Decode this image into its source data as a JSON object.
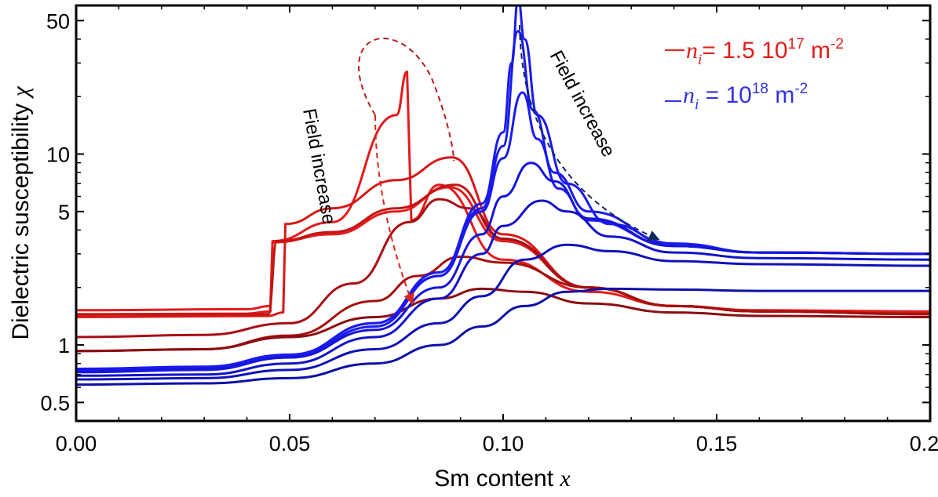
{
  "chart_data": {
    "type": "line",
    "title": "",
    "xlabel": "Sm content",
    "xlabel_symbol": "x",
    "ylabel": "Dielectric susceptibility",
    "ylabel_symbol": "χ",
    "xlim": [
      0,
      0.2
    ],
    "ylim": [
      0.4,
      60
    ],
    "yscale": "log",
    "grid": false,
    "legend_position": "top-right",
    "x_ticks": [
      0.0,
      0.05,
      0.1,
      0.15,
      0.2
    ],
    "x_tick_labels": [
      "0.00",
      "0.05",
      "0.10",
      "0.15",
      "0.20"
    ],
    "y_ticks": [
      0.5,
      1,
      5,
      10,
      50
    ],
    "y_tick_labels": [
      "0.5",
      "1",
      "5",
      "10",
      "50"
    ],
    "legend": [
      {
        "symbol": "n",
        "subscript": "i",
        "text": "= 1.5 10",
        "sup": "17",
        "unit": " m",
        "unit_sup": "-2",
        "color": "#e0201b"
      },
      {
        "symbol": "n",
        "subscript": "i",
        "text": " = 10",
        "sup": "18",
        "unit": " m",
        "unit_sup": "-2",
        "color": "#3333dd"
      }
    ],
    "annotations": [
      {
        "text": "Field increase",
        "color": "#b01010"
      },
      {
        "text": "Field increase",
        "color": "#102a5a"
      }
    ],
    "series": [
      {
        "group": "red",
        "color": "#e41a1c",
        "x": [
          0,
          0.04,
          0.0455,
          0.046,
          0.06,
          0.075,
          0.0775,
          0.0785,
          0.085,
          0.1,
          0.12,
          0.14,
          0.16,
          0.2
        ],
        "y": [
          1.52,
          1.54,
          1.6,
          3.5,
          4.4,
          16,
          27,
          4.5,
          6.9,
          2.8,
          1.9,
          1.6,
          1.52,
          1.5
        ]
      },
      {
        "group": "red",
        "color": "#e01f1f",
        "x": [
          0,
          0.04,
          0.0455,
          0.046,
          0.06,
          0.075,
          0.0875,
          0.1,
          0.12,
          0.14,
          0.16,
          0.2
        ],
        "y": [
          1.45,
          1.46,
          1.5,
          3.45,
          3.8,
          5.0,
          6.7,
          3.5,
          2.0,
          1.6,
          1.5,
          1.48
        ]
      },
      {
        "group": "red",
        "color": "#d81818",
        "x": [
          0,
          0.045,
          0.0485,
          0.049,
          0.06,
          0.075,
          0.088,
          0.1,
          0.12,
          0.14,
          0.16,
          0.2
        ],
        "y": [
          1.4,
          1.42,
          1.48,
          4.3,
          5.2,
          7.3,
          9.6,
          3.8,
          2.0,
          1.6,
          1.5,
          1.45
        ]
      },
      {
        "group": "red",
        "color": "#c41414",
        "x": [
          0,
          0.045,
          0.047,
          0.06,
          0.075,
          0.0888,
          0.1,
          0.12,
          0.14,
          0.16,
          0.2
        ],
        "y": [
          1.44,
          1.45,
          3.5,
          3.9,
          5.2,
          6.9,
          3.6,
          2.0,
          1.6,
          1.5,
          1.46
        ]
      },
      {
        "group": "red",
        "color": "#a80f14",
        "x": [
          0,
          0.03,
          0.05,
          0.065,
          0.078,
          0.085,
          0.092,
          0.1,
          0.12,
          0.14,
          0.16,
          0.2
        ],
        "y": [
          1.1,
          1.13,
          1.3,
          2.1,
          4.4,
          5.8,
          5.2,
          3.6,
          2.0,
          1.6,
          1.5,
          1.45
        ]
      },
      {
        "group": "red",
        "color": "#a51010",
        "x": [
          0,
          0.03,
          0.05,
          0.07,
          0.08,
          0.09,
          0.1,
          0.12,
          0.14,
          0.16,
          0.2
        ],
        "y": [
          0.93,
          0.95,
          1.12,
          1.7,
          2.3,
          2.9,
          2.7,
          2.0,
          1.6,
          1.5,
          1.45
        ]
      },
      {
        "group": "red",
        "color": "#8b0d12",
        "x": [
          0,
          0.03,
          0.05,
          0.07,
          0.085,
          0.095,
          0.105,
          0.12,
          0.14,
          0.16,
          0.2
        ],
        "y": [
          0.93,
          0.95,
          1.1,
          1.4,
          1.75,
          1.97,
          1.9,
          1.65,
          1.48,
          1.42,
          1.4
        ]
      },
      {
        "group": "blue",
        "color": "#1a1aef",
        "x": [
          0,
          0.03,
          0.05,
          0.07,
          0.085,
          0.095,
          0.1,
          0.102,
          0.1035,
          0.105,
          0.108,
          0.115,
          0.125,
          0.14,
          0.16,
          0.2
        ],
        "y": [
          0.74,
          0.76,
          0.88,
          1.3,
          2.4,
          5.5,
          13,
          30,
          65,
          40,
          16,
          7,
          4.3,
          3.3,
          3.05,
          3.0
        ]
      },
      {
        "group": "blue",
        "color": "#1a1aef",
        "x": [
          0,
          0.03,
          0.05,
          0.07,
          0.085,
          0.095,
          0.1,
          0.1035,
          0.107,
          0.112,
          0.12,
          0.14,
          0.16,
          0.2
        ],
        "y": [
          0.72,
          0.74,
          0.86,
          1.25,
          2.3,
          5.2,
          11,
          44,
          17,
          8,
          5,
          3.4,
          3.05,
          3.0
        ]
      },
      {
        "group": "blue",
        "color": "#1a1aef",
        "x": [
          0,
          0.03,
          0.05,
          0.07,
          0.085,
          0.095,
          0.1,
          0.1045,
          0.108,
          0.113,
          0.12,
          0.14,
          0.16,
          0.2
        ],
        "y": [
          0.75,
          0.77,
          0.89,
          1.3,
          2.3,
          5.0,
          9.5,
          21,
          12,
          6.6,
          4.5,
          3.3,
          3.05,
          3.0
        ]
      },
      {
        "group": "blue",
        "color": "#1515d8",
        "x": [
          0,
          0.03,
          0.05,
          0.07,
          0.085,
          0.095,
          0.1,
          0.1065,
          0.112,
          0.12,
          0.14,
          0.16,
          0.2
        ],
        "y": [
          0.73,
          0.75,
          0.86,
          1.2,
          2.0,
          3.8,
          6.0,
          9.0,
          7.2,
          4.6,
          3.3,
          3.05,
          3.0
        ]
      },
      {
        "group": "blue",
        "color": "#1212c8",
        "x": [
          0,
          0.03,
          0.05,
          0.07,
          0.085,
          0.095,
          0.1,
          0.109,
          0.115,
          0.125,
          0.14,
          0.16,
          0.2
        ],
        "y": [
          0.69,
          0.7,
          0.8,
          1.1,
          1.75,
          3.0,
          4.2,
          5.7,
          5.0,
          3.7,
          3.05,
          2.85,
          2.8
        ]
      },
      {
        "group": "blue",
        "color": "#1111b8",
        "x": [
          0,
          0.03,
          0.05,
          0.07,
          0.085,
          0.095,
          0.105,
          0.115,
          0.125,
          0.14,
          0.16,
          0.2
        ],
        "y": [
          0.66,
          0.67,
          0.74,
          0.95,
          1.3,
          1.8,
          2.8,
          3.35,
          3.1,
          2.75,
          2.65,
          2.6
        ]
      },
      {
        "group": "blue",
        "color": "#0f0fa8",
        "x": [
          0,
          0.03,
          0.05,
          0.07,
          0.085,
          0.095,
          0.105,
          0.115,
          0.125,
          0.14,
          0.16,
          0.2
        ],
        "y": [
          0.62,
          0.63,
          0.67,
          0.8,
          1.0,
          1.25,
          1.6,
          1.9,
          1.97,
          1.95,
          1.92,
          1.92
        ]
      }
    ]
  }
}
